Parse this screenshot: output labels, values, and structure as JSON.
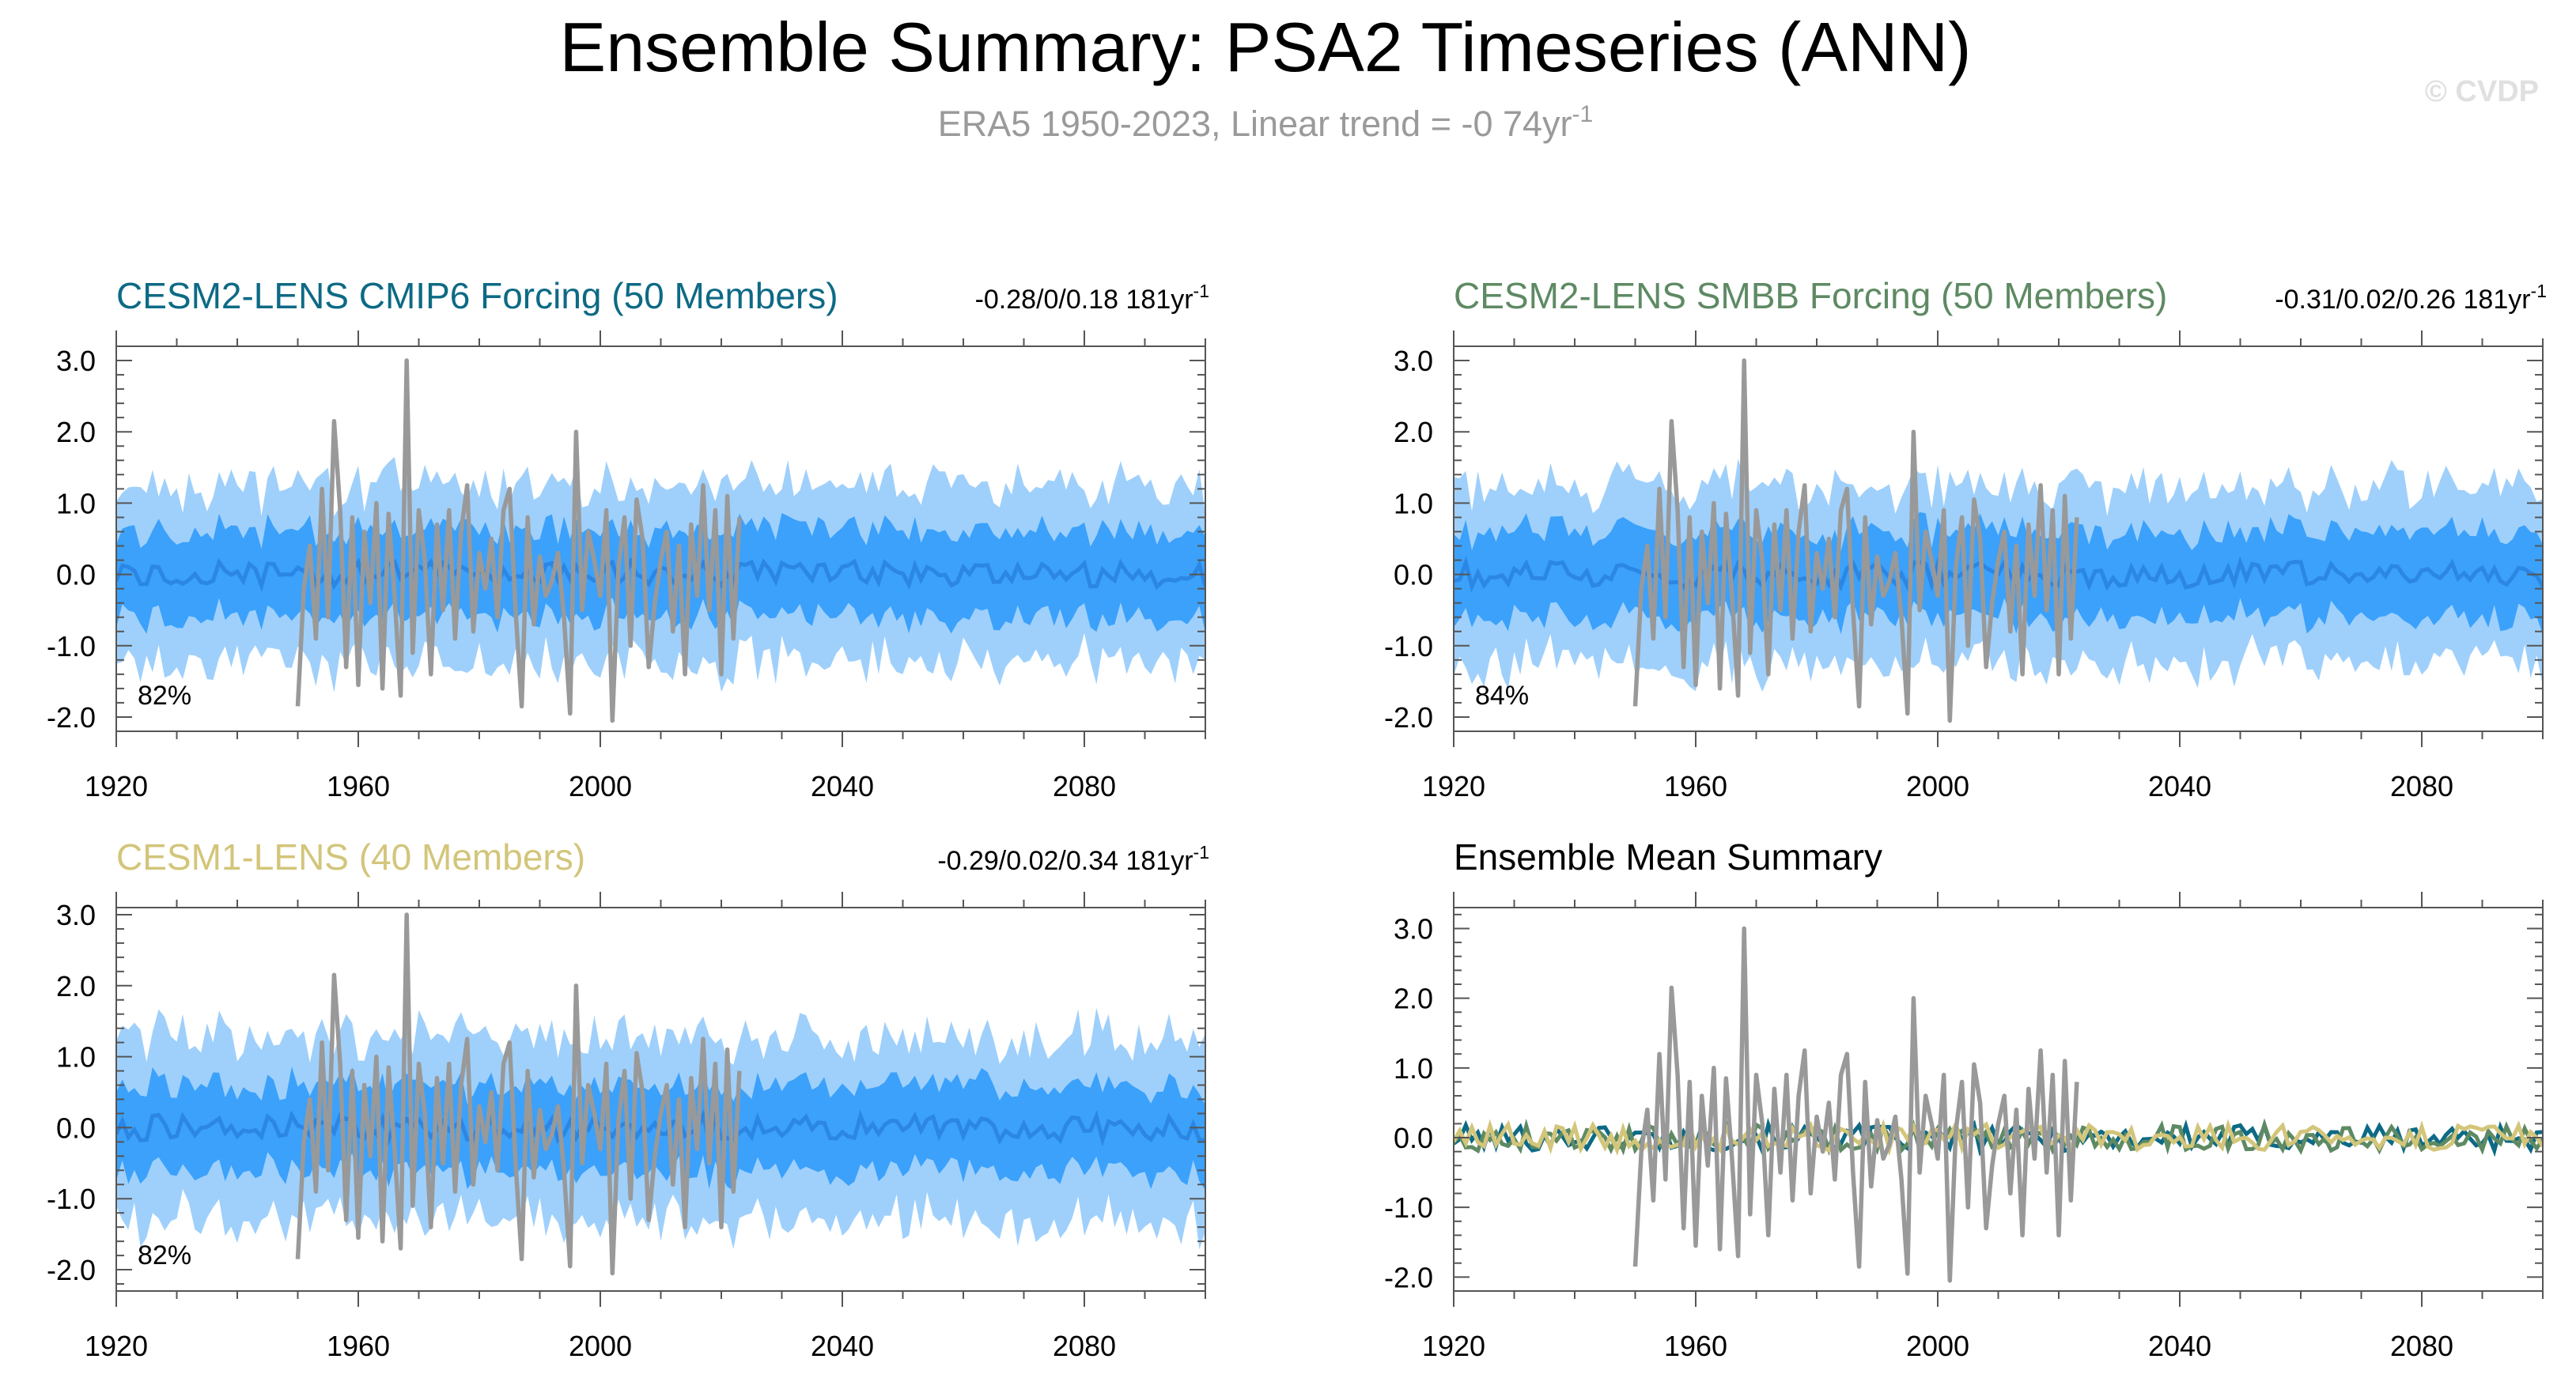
{
  "title": "Ensemble Summary: PSA2 Timeseries (ANN)",
  "subtitle": {
    "text": "ERA5 1950-2023, Linear trend = -0 74yr",
    "superscript": "-1"
  },
  "watermark": "© CVDP",
  "colors": {
    "band_outer": "#9fd0fb",
    "band_inner": "#3ba1fb",
    "ens_mean_line": "#2b86e4",
    "obs_line": "#999999",
    "cesm2_cmip6": "#0d6a85",
    "cesm2_smbb": "#5e8a63",
    "cesm1": "#d3c57a",
    "axis": "#000000"
  },
  "chart_data": [
    {
      "id": "cesm2-cmip6",
      "type": "area",
      "title": "CESM2-LENS CMIP6 Forcing (50 Members)",
      "title_color": "#0d6a85",
      "trend_text": "-0.28/0/0.18 181yr",
      "trend_sup": "-1",
      "percent_label": "82%",
      "xlim": [
        1920,
        2100
      ],
      "ylim": [
        -2.2,
        3.2
      ],
      "x_ticks": [
        1920,
        1960,
        2000,
        2040,
        2080
      ],
      "y_ticks": [
        3.0,
        2.0,
        1.0,
        0.0,
        -1.0,
        -2.0
      ],
      "y_tick_labels": [
        "3.0",
        "2.0",
        "1.0",
        "0.0",
        "-1.0",
        "-2.0"
      ],
      "seed": 11,
      "outer_halfwidth": 1.25,
      "inner_halfwidth": 0.62
    },
    {
      "id": "cesm2-smbb",
      "type": "area",
      "title": "CESM2-LENS SMBB Forcing (50 Members)",
      "title_color": "#5e8a63",
      "trend_text": "-0.31/0.02/0.26 181yr",
      "trend_sup": "-1",
      "percent_label": "84%",
      "xlim": [
        1920,
        2100
      ],
      "ylim": [
        -2.2,
        3.2
      ],
      "x_ticks": [
        1920,
        1960,
        2000,
        2040,
        2080
      ],
      "y_ticks": [
        3.0,
        2.0,
        1.0,
        0.0,
        -1.0,
        -2.0
      ],
      "y_tick_labels": [
        "3.0",
        "2.0",
        "1.0",
        "0.0",
        "-1.0",
        "-2.0"
      ],
      "seed": 29,
      "outer_halfwidth": 1.25,
      "inner_halfwidth": 0.62
    },
    {
      "id": "cesm1",
      "type": "area",
      "title": "CESM1-LENS (40 Members)",
      "title_color": "#d3c57a",
      "trend_text": "-0.29/0.02/0.34 181yr",
      "trend_sup": "-1",
      "percent_label": "82%",
      "xlim": [
        1920,
        2100
      ],
      "ylim": [
        -2.3,
        3.1
      ],
      "x_ticks": [
        1920,
        1960,
        2000,
        2040,
        2080
      ],
      "y_ticks": [
        3.0,
        2.0,
        1.0,
        0.0,
        -1.0,
        -2.0
      ],
      "y_tick_labels": [
        "3.0",
        "2.0",
        "1.0",
        "0.0",
        "-1.0",
        "-2.0"
      ],
      "seed": 47,
      "outer_halfwidth": 1.3,
      "inner_halfwidth": 0.62
    },
    {
      "id": "ensemble-mean",
      "type": "line",
      "title": "Ensemble Mean Summary",
      "title_color": "#000000",
      "xlim": [
        1920,
        2100
      ],
      "ylim": [
        -2.2,
        3.3
      ],
      "x_ticks": [
        1920,
        1960,
        2000,
        2040,
        2080
      ],
      "y_ticks": [
        3.0,
        2.0,
        1.0,
        0.0,
        -1.0,
        -2.0
      ],
      "y_tick_labels": [
        "3.0",
        "2.0",
        "1.0",
        "0.0",
        "-1.0",
        "-2.0"
      ],
      "series": [
        {
          "name": "CESM2-LENS CMIP6 Forcing",
          "color": "#0d6a85",
          "seed": 101
        },
        {
          "name": "CESM2-LENS SMBB Forcing",
          "color": "#5e8a63",
          "seed": 202
        },
        {
          "name": "CESM1-LENS",
          "color": "#d3c57a",
          "seed": 303
        }
      ]
    }
  ],
  "observations": {
    "name": "ERA5",
    "x_start": 1950,
    "values": [
      -1.85,
      -0.2,
      0.4,
      -0.9,
      1.2,
      -0.6,
      2.15,
      0.9,
      -1.3,
      0.8,
      -1.55,
      0.6,
      -0.4,
      1.0,
      -1.6,
      0.85,
      -0.3,
      -1.7,
      3.0,
      -1.1,
      0.9,
      0.2,
      -1.4,
      0.7,
      -0.5,
      0.9,
      -0.9,
      0.6,
      1.25,
      -0.8,
      0.3,
      -0.2,
      0.5,
      -0.6,
      0.9,
      1.2,
      -0.5,
      -1.85,
      0.8,
      -0.7,
      0.25,
      -0.3,
      -0.1,
      0.3,
      -0.6,
      -1.95,
      2.0,
      -0.5,
      0.6,
      0.2,
      -0.3,
      0.9,
      -2.05,
      0.1,
      0.8,
      -1.0,
      1.05,
      0.5,
      -1.3,
      -0.4,
      0.2,
      0.6,
      -0.8,
      0.4,
      -1.4,
      0.7,
      -0.3,
      1.25,
      -0.5,
      0.9,
      -1.4,
      1.1,
      -0.9,
      0.8
    ]
  }
}
